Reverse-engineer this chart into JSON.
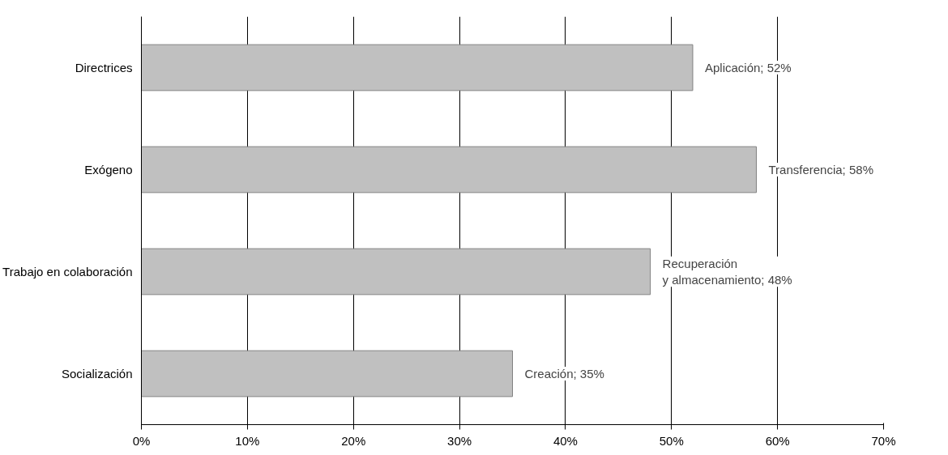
{
  "chart_data": {
    "type": "bar",
    "orientation": "horizontal",
    "categories": [
      "Directrices",
      "Exógeno",
      "Trabajo en colaboración",
      "Socialización"
    ],
    "values": [
      52,
      58,
      48,
      35
    ],
    "color": "#c0c0c0",
    "value_labels": [
      "Aplicación; 52%",
      "Transferencia; 58%",
      "Recuperación\ny almacenamiento; 48%",
      "Creación; 35%"
    ],
    "xlim": [
      0,
      70
    ],
    "xticks": [
      {
        "value": 0,
        "label": "0%"
      },
      {
        "value": 10,
        "label": "10%"
      },
      {
        "value": 20,
        "label": "20%"
      },
      {
        "value": 30,
        "label": "30%"
      },
      {
        "value": 40,
        "label": "40%"
      },
      {
        "value": 50,
        "label": "50%"
      },
      {
        "value": 60,
        "label": "60%"
      },
      {
        "value": 70,
        "label": "70%"
      }
    ],
    "grid": "x"
  }
}
